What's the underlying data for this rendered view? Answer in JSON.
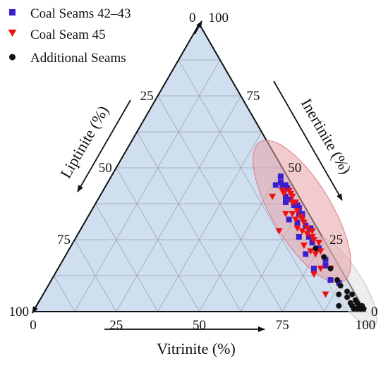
{
  "chart_data": {
    "type": "scatter",
    "subtype": "ternary",
    "axes": {
      "vitrinite": {
        "label": "Vitrinite (%)",
        "ticks": [
          "0",
          "25",
          "50",
          "75",
          "100"
        ]
      },
      "inertinite": {
        "label": "Inertinite (%)",
        "ticks": [
          "0",
          "25",
          "50",
          "75",
          "100"
        ]
      },
      "liptinite": {
        "label": "Liptinite (%)",
        "ticks": [
          "0",
          "25",
          "50",
          "75",
          "100"
        ]
      }
    },
    "range": [
      0,
      100
    ],
    "grid": true,
    "legend_position": "top-left",
    "colors": {
      "background": "#cfdff0",
      "grid": "#9aa4ae",
      "ellipse_fill": "#e8a0a8",
      "ellipse_stroke": "#e07a88",
      "ellipse_gray": "#c9c9c9"
    },
    "series": [
      {
        "name": "Coal Seams 42–43",
        "marker": "square",
        "color": "#3a1fcf",
        "points": [
          {
            "vitrinite": 51,
            "inertinite": 47,
            "liptinite": 2
          },
          {
            "vitrinite": 51,
            "inertinite": 44,
            "liptinite": 5
          },
          {
            "vitrinite": 52,
            "inertinite": 45,
            "liptinite": 3
          },
          {
            "vitrinite": 53,
            "inertinite": 44,
            "liptinite": 3
          },
          {
            "vitrinite": 54,
            "inertinite": 44,
            "liptinite": 2
          },
          {
            "vitrinite": 55,
            "inertinite": 43,
            "liptinite": 2
          },
          {
            "vitrinite": 56,
            "inertinite": 40,
            "liptinite": 4
          },
          {
            "vitrinite": 57,
            "inertinite": 38,
            "liptinite": 5
          },
          {
            "vitrinite": 58,
            "inertinite": 39,
            "liptinite": 3
          },
          {
            "vitrinite": 60,
            "inertinite": 37,
            "liptinite": 3
          },
          {
            "vitrinite": 61,
            "inertinite": 37,
            "liptinite": 2
          },
          {
            "vitrinite": 61,
            "inertinite": 32,
            "liptinite": 7
          },
          {
            "vitrinite": 62,
            "inertinite": 36,
            "liptinite": 2
          },
          {
            "vitrinite": 63,
            "inertinite": 34,
            "liptinite": 3
          },
          {
            "vitrinite": 64,
            "inertinite": 34,
            "liptinite": 2
          },
          {
            "vitrinite": 64,
            "inertinite": 31,
            "liptinite": 5
          },
          {
            "vitrinite": 67,
            "inertinite": 30,
            "liptinite": 3
          },
          {
            "vitrinite": 67,
            "inertinite": 26,
            "liptinite": 7
          },
          {
            "vitrinite": 69,
            "inertinite": 29,
            "liptinite": 2
          },
          {
            "vitrinite": 70,
            "inertinite": 26,
            "liptinite": 4
          },
          {
            "vitrinite": 72,
            "inertinite": 20,
            "liptinite": 8
          },
          {
            "vitrinite": 72,
            "inertinite": 24,
            "liptinite": 4
          },
          {
            "vitrinite": 75,
            "inertinite": 22,
            "liptinite": 3
          },
          {
            "vitrinite": 77,
            "inertinite": 15,
            "liptinite": 8
          },
          {
            "vitrinite": 79,
            "inertinite": 18,
            "liptinite": 3
          },
          {
            "vitrinite": 80,
            "inertinite": 16,
            "liptinite": 4
          },
          {
            "vitrinite": 84,
            "inertinite": 11,
            "liptinite": 5
          },
          {
            "vitrinite": 87,
            "inertinite": 10,
            "liptinite": 3
          }
        ]
      },
      {
        "name": "Coal Seam 45",
        "marker": "triangle-down",
        "color": "#ee1111",
        "points": [
          {
            "vitrinite": 52,
            "inertinite": 40,
            "liptinite": 8
          },
          {
            "vitrinite": 54,
            "inertinite": 42,
            "liptinite": 4
          },
          {
            "vitrinite": 55,
            "inertinite": 41,
            "liptinite": 4
          },
          {
            "vitrinite": 56,
            "inertinite": 42,
            "liptinite": 2
          },
          {
            "vitrinite": 57,
            "inertinite": 41,
            "liptinite": 2
          },
          {
            "vitrinite": 58,
            "inertinite": 40,
            "liptinite": 2
          },
          {
            "vitrinite": 59,
            "inertinite": 38,
            "liptinite": 3
          },
          {
            "vitrinite": 59,
            "inertinite": 34,
            "liptinite": 7
          },
          {
            "vitrinite": 60,
            "inertinite": 38,
            "liptinite": 2
          },
          {
            "vitrinite": 60,
            "inertinite": 28,
            "liptinite": 12
          },
          {
            "vitrinite": 61,
            "inertinite": 34,
            "liptinite": 5
          },
          {
            "vitrinite": 62,
            "inertinite": 35,
            "liptinite": 3
          },
          {
            "vitrinite": 63,
            "inertinite": 32,
            "liptinite": 5
          },
          {
            "vitrinite": 64,
            "inertinite": 33,
            "liptinite": 3
          },
          {
            "vitrinite": 65,
            "inertinite": 32,
            "liptinite": 3
          },
          {
            "vitrinite": 65,
            "inertinite": 29,
            "liptinite": 6
          },
          {
            "vitrinite": 66,
            "inertinite": 31,
            "liptinite": 3
          },
          {
            "vitrinite": 67,
            "inertinite": 28,
            "liptinite": 5
          },
          {
            "vitrinite": 68,
            "inertinite": 29,
            "liptinite": 3
          },
          {
            "vitrinite": 69,
            "inertinite": 27,
            "liptinite": 4
          },
          {
            "vitrinite": 70,
            "inertinite": 28,
            "liptinite": 2
          },
          {
            "vitrinite": 70,
            "inertinite": 23,
            "liptinite": 7
          },
          {
            "vitrinite": 71,
            "inertinite": 26,
            "liptinite": 3
          },
          {
            "vitrinite": 72,
            "inertinite": 25,
            "liptinite": 3
          },
          {
            "vitrinite": 73,
            "inertinite": 21,
            "liptinite": 6
          },
          {
            "vitrinite": 74,
            "inertinite": 24,
            "liptinite": 2
          },
          {
            "vitrinite": 75,
            "inertinite": 20,
            "liptinite": 5
          },
          {
            "vitrinite": 76,
            "inertinite": 21,
            "liptinite": 3
          },
          {
            "vitrinite": 78,
            "inertinite": 13,
            "liptinite": 9
          },
          {
            "vitrinite": 79,
            "inertinite": 15,
            "liptinite": 6
          },
          {
            "vitrinite": 82,
            "inertinite": 15,
            "liptinite": 3
          },
          {
            "vitrinite": 85,
            "inertinite": 6,
            "liptinite": 9
          }
        ]
      },
      {
        "name": "Additional Seams",
        "marker": "circle",
        "color": "#111111",
        "points": [
          {
            "vitrinite": 74,
            "inertinite": 22,
            "liptinite": 4
          },
          {
            "vitrinite": 78,
            "inertinite": 19,
            "liptinite": 3
          },
          {
            "vitrinite": 82,
            "inertinite": 15,
            "liptinite": 3
          },
          {
            "vitrinite": 86,
            "inertinite": 11,
            "liptinite": 3
          },
          {
            "vitrinite": 88,
            "inertinite": 9,
            "liptinite": 3
          },
          {
            "vitrinite": 89,
            "inertinite": 6,
            "liptinite": 5
          },
          {
            "vitrinite": 91,
            "inertinite": 7,
            "liptinite": 2
          },
          {
            "vitrinite": 91,
            "inertinite": 2,
            "liptinite": 7
          },
          {
            "vitrinite": 92,
            "inertinite": 5,
            "liptinite": 3
          },
          {
            "vitrinite": 93,
            "inertinite": 6,
            "liptinite": 1
          },
          {
            "vitrinite": 94,
            "inertinite": 3,
            "liptinite": 3
          },
          {
            "vitrinite": 95,
            "inertinite": 4,
            "liptinite": 1
          },
          {
            "vitrinite": 95,
            "inertinite": 2,
            "liptinite": 3
          },
          {
            "vitrinite": 96,
            "inertinite": 3,
            "liptinite": 1
          },
          {
            "vitrinite": 96,
            "inertinite": 1,
            "liptinite": 3
          },
          {
            "vitrinite": 97,
            "inertinite": 2,
            "liptinite": 1
          },
          {
            "vitrinite": 97,
            "inertinite": 1,
            "liptinite": 2
          },
          {
            "vitrinite": 98,
            "inertinite": 1,
            "liptinite": 1
          },
          {
            "vitrinite": 98,
            "inertinite": 2,
            "liptinite": 0
          },
          {
            "vitrinite": 99,
            "inertinite": 1,
            "liptinite": 0
          }
        ]
      }
    ]
  }
}
